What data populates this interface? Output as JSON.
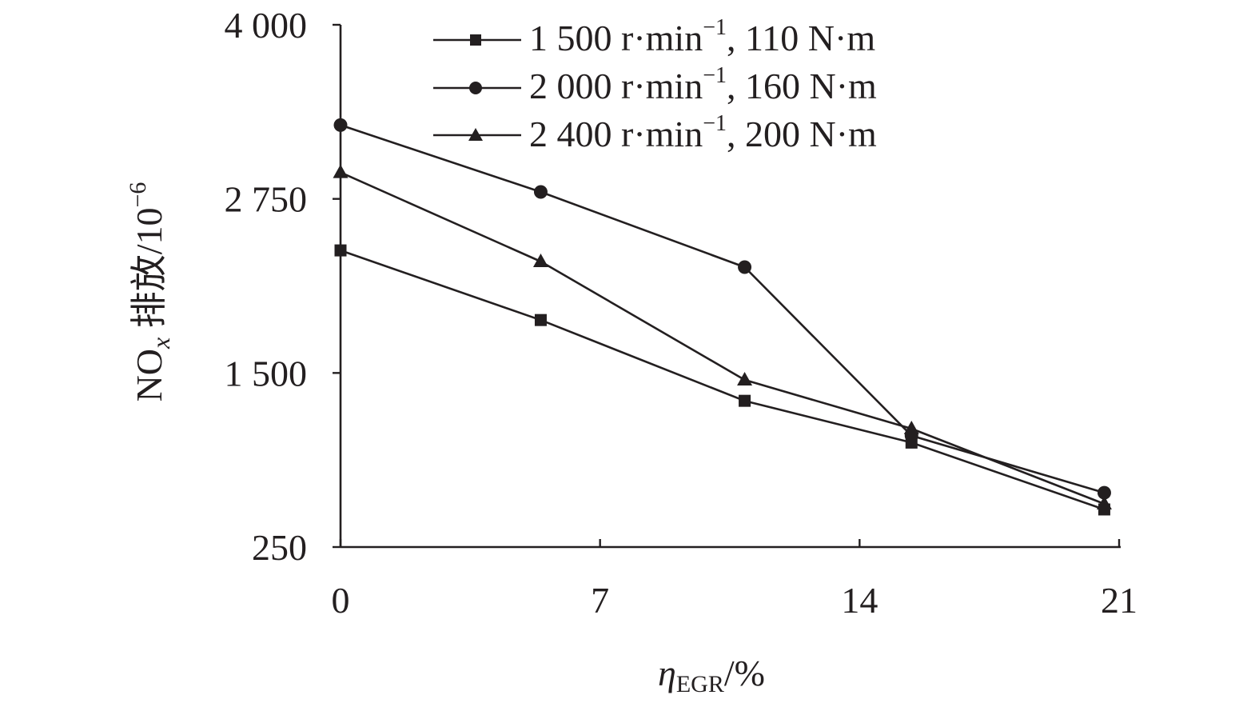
{
  "chart_data": {
    "type": "line",
    "title": "",
    "xlabel_symbol": "η",
    "xlabel_subscript": "EGR",
    "xlabel_unit": "/%",
    "ylabel_prefix": "NO",
    "ylabel_subscript": "x",
    "ylabel_text": " 排放/10",
    "ylabel_superscript": "−6",
    "xlim": [
      0,
      21
    ],
    "ylim": [
      250,
      4000
    ],
    "x_ticks": [
      0,
      7,
      14,
      21
    ],
    "x_tick_labels": [
      "0",
      "7",
      "14",
      "21"
    ],
    "y_ticks": [
      250,
      1500,
      2750,
      4000
    ],
    "y_tick_labels": [
      "250",
      "1 500",
      "2 750",
      "4 000"
    ],
    "legend_position": "top-right",
    "series": [
      {
        "name": "1 500 r·min⁻¹, 110 N·m",
        "name_main": "1 500 r·min",
        "name_sup": "−1",
        "name_tail": ", 110 N·m",
        "marker": "square",
        "color": "#231f20",
        "x": [
          0,
          5.4,
          10.9,
          15.4,
          20.6
        ],
        "values": [
          2380,
          1880,
          1300,
          1000,
          520
        ]
      },
      {
        "name": "2 000 r·min⁻¹, 160 N·m",
        "name_main": "2 000 r·min",
        "name_sup": "−1",
        "name_tail": ", 160 N·m",
        "marker": "circle",
        "color": "#231f20",
        "x": [
          0,
          5.4,
          10.9,
          15.4,
          20.6
        ],
        "values": [
          3280,
          2800,
          2260,
          1050,
          640
        ]
      },
      {
        "name": "2 400 r·min⁻¹, 200 N·m",
        "name_main": "2 400 r·min",
        "name_sup": "−1",
        "name_tail": ", 200 N·m",
        "marker": "triangle",
        "color": "#231f20",
        "x": [
          0,
          5.4,
          10.9,
          15.4,
          20.6
        ],
        "values": [
          2940,
          2300,
          1450,
          1100,
          560
        ]
      }
    ]
  }
}
